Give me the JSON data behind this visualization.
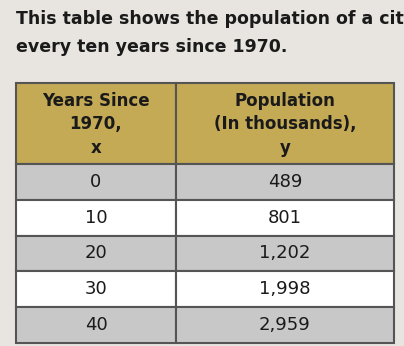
{
  "title_line1": "This table shows the population of a city",
  "title_line2": "every ten years since 1970.",
  "col1_header": [
    "Years Since",
    "1970,",
    "x"
  ],
  "col2_header": [
    "Population",
    "(In thousands),",
    "y"
  ],
  "rows": [
    [
      "0",
      "489"
    ],
    [
      "10",
      "801"
    ],
    [
      "20",
      "1,202"
    ],
    [
      "30",
      "1,998"
    ],
    [
      "40",
      "2,959"
    ]
  ],
  "header_bg": "#C4AA55",
  "row_odd_bg": "#C8C8C8",
  "row_even_bg": "#FFFFFF",
  "border_color": "#555555",
  "text_color": "#1A1A1A",
  "title_color": "#1A1A1A",
  "title_fontsize": 12.5,
  "header_fontsize": 12,
  "cell_fontsize": 13,
  "fig_bg": "#E8E4DF"
}
